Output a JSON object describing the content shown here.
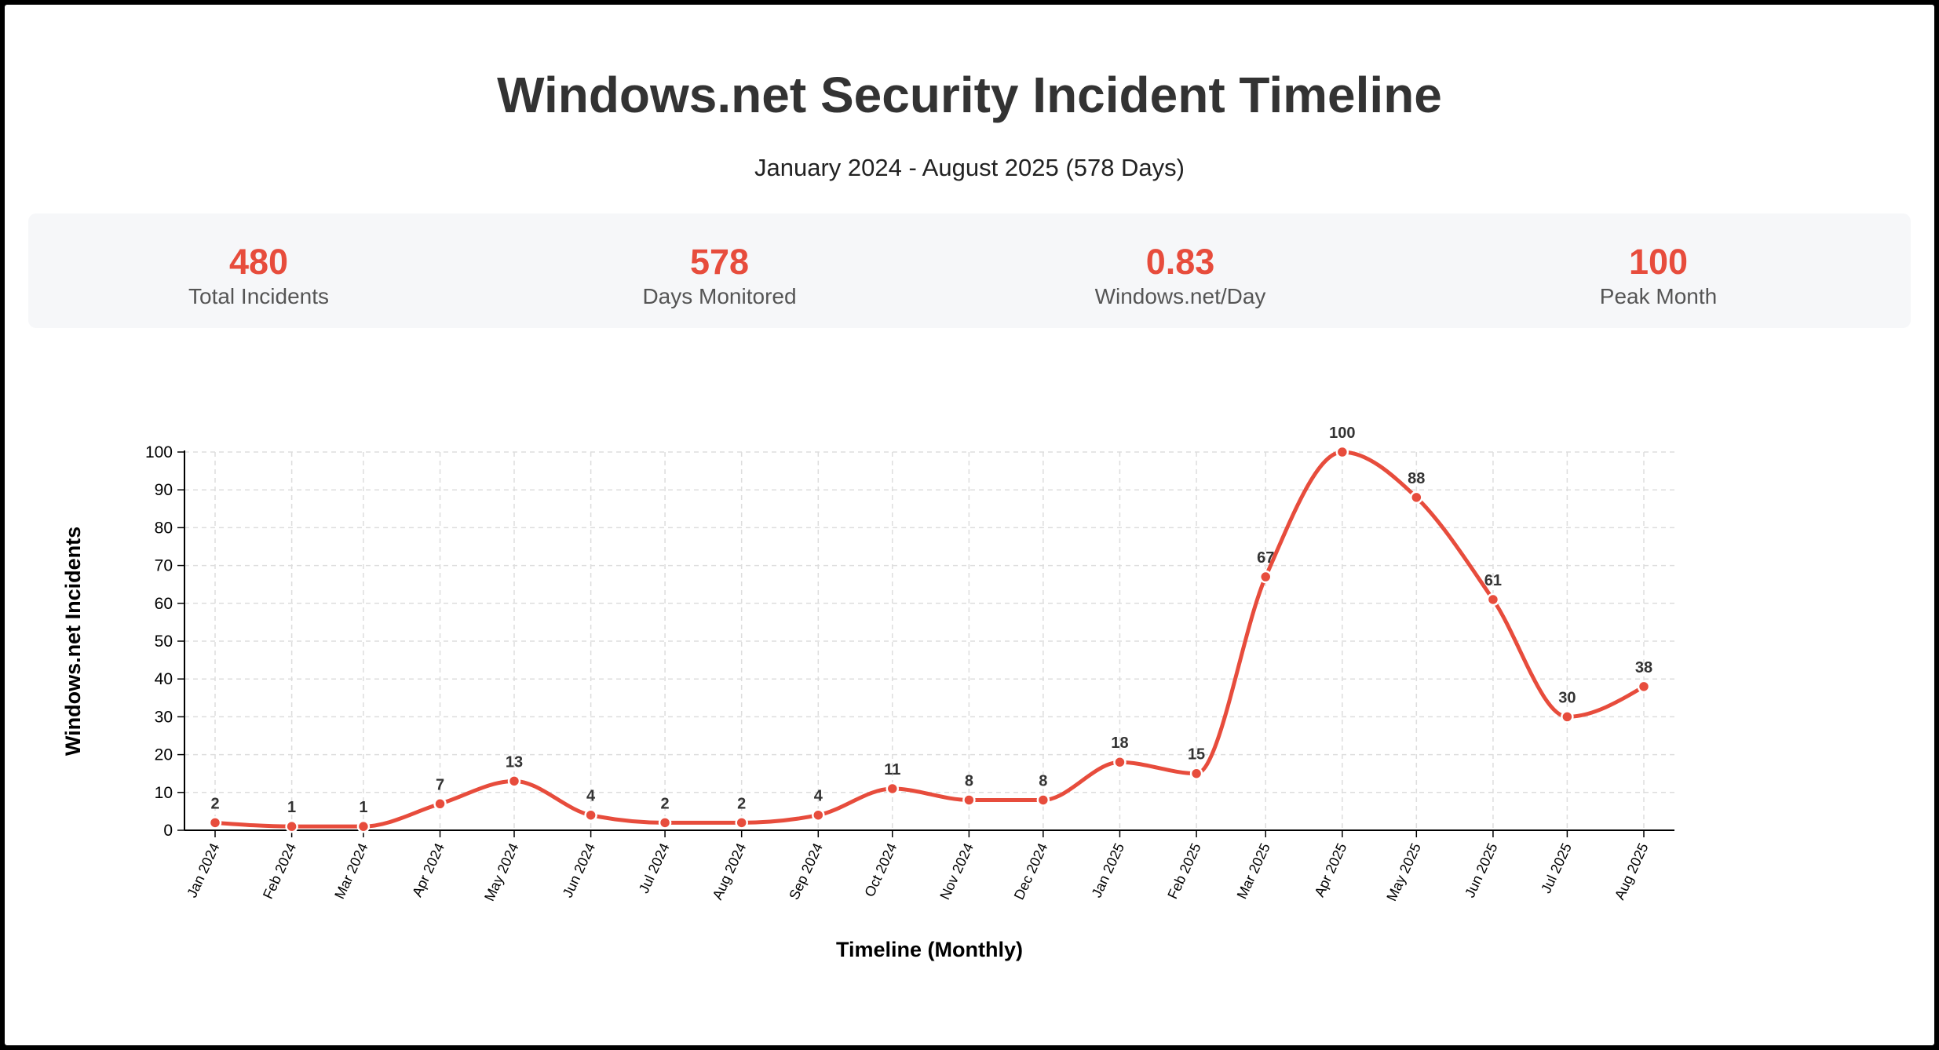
{
  "header": {
    "title": "Windows.net Security Incident Timeline",
    "subtitle": "January 2024 - August 2025 (578 Days)"
  },
  "stats": [
    {
      "value": "480",
      "label": "Total Incidents"
    },
    {
      "value": "578",
      "label": "Days Monitored"
    },
    {
      "value": "0.83",
      "label": "Windows.net/Day"
    },
    {
      "value": "100",
      "label": "Peak Month"
    }
  ],
  "colors": {
    "accent": "#e74c3c",
    "title": "#333333",
    "panel": "#f6f7f9",
    "grid": "#dddddd"
  },
  "chart_data": {
    "type": "line",
    "title": "",
    "xlabel": "Timeline (Monthly)",
    "ylabel": "Windows.net Incidents",
    "ylim": [
      0,
      100
    ],
    "yticks": [
      0,
      10,
      20,
      30,
      40,
      50,
      60,
      70,
      80,
      90,
      100
    ],
    "grid": true,
    "categories": [
      "Jan 2024",
      "Feb 2024",
      "Mar 2024",
      "Apr 2024",
      "May 2024",
      "Jun 2024",
      "Jul 2024",
      "Aug 2024",
      "Sep 2024",
      "Oct 2024",
      "Nov 2024",
      "Dec 2024",
      "Jan 2025",
      "Feb 2025",
      "Mar 2025",
      "Apr 2025",
      "May 2025",
      "Jun 2025",
      "Jul 2025",
      "Aug 2025"
    ],
    "dates": [
      "2024-01-01",
      "2024-02-01",
      "2024-03-01",
      "2024-04-01",
      "2024-05-01",
      "2024-06-01",
      "2024-07-01",
      "2024-08-01",
      "2024-09-01",
      "2024-10-01",
      "2024-11-01",
      "2024-12-01",
      "2025-01-01",
      "2025-02-01",
      "2025-03-01",
      "2025-04-01",
      "2025-05-01",
      "2025-06-01",
      "2025-07-01",
      "2025-08-01"
    ],
    "series": [
      {
        "name": "Windows.net Incidents",
        "values": [
          2,
          1,
          1,
          7,
          13,
          4,
          2,
          2,
          4,
          11,
          8,
          8,
          18,
          15,
          67,
          100,
          88,
          61,
          30,
          38
        ]
      }
    ]
  }
}
